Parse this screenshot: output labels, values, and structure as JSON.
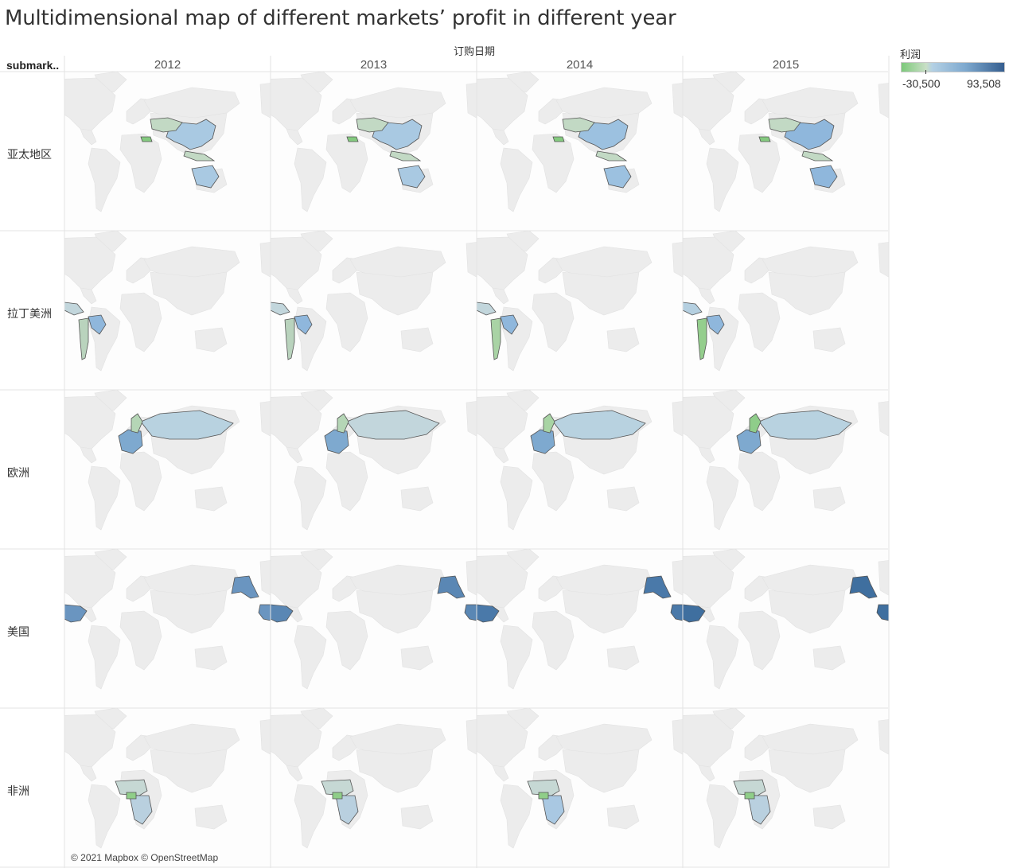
{
  "title": "Multidimensional map of different markets’ profit in different year",
  "column_field": "订购日期",
  "row_field": "submark..",
  "years": [
    "2012",
    "2013",
    "2014",
    "2015"
  ],
  "markets": [
    "亚太地区",
    "拉丁美洲",
    "欧洲",
    "美国",
    "非洲"
  ],
  "legend": {
    "title": "利润",
    "min_label": "-30,500",
    "max_label": "93,508",
    "colors": [
      "#7cc97a",
      "#c9dfc6",
      "#b3d0e4",
      "#7ea9cf",
      "#355e8f"
    ]
  },
  "attribution": "© 2021 Mapbox © OpenStreetMap",
  "map_style": {
    "basemap_land": "#ececec",
    "highlight_border": "#555555"
  },
  "cell_colors": {
    "亚太地区": {
      "2012": [
        "#a9c9e2",
        "#c2d9c4",
        "#84ca7f"
      ],
      "2013": [
        "#a9c9e2",
        "#c2d9c4",
        "#84ca7f"
      ],
      "2014": [
        "#9cc1e0",
        "#c2d9c4",
        "#84ca7f"
      ],
      "2015": [
        "#8fb7dc",
        "#c2d9c4",
        "#84ca7f"
      ]
    },
    "拉丁美洲": {
      "2012": [
        "#c2d6dc",
        "#8fb7dc",
        "#b9d3bd"
      ],
      "2013": [
        "#c2d6dc",
        "#8fb7dc",
        "#b9d3bd"
      ],
      "2014": [
        "#c2d6dc",
        "#8fb7dc",
        "#a9d3a5"
      ],
      "2015": [
        "#b4cfe0",
        "#8fb7dc",
        "#94ce8d"
      ]
    },
    "欧洲": {
      "2012": [
        "#b8d2e0",
        "#7ea9cf",
        "#b5d6b6"
      ],
      "2013": [
        "#c2d6dc",
        "#7ea9cf",
        "#b5d6b6"
      ],
      "2014": [
        "#b8d2e0",
        "#7ea9cf",
        "#a8d4a4"
      ],
      "2015": [
        "#b8d2e0",
        "#7ea9cf",
        "#8fcd8a"
      ]
    },
    "美国": {
      "2012": [
        "#6a95c0",
        "#6a95c0",
        "#6a95c0"
      ],
      "2013": [
        "#5a87b4",
        "#5a87b4",
        "#5a87b4"
      ],
      "2014": [
        "#4a79a9",
        "#4a79a9",
        "#4a79a9"
      ],
      "2015": [
        "#3f6f9f",
        "#3f6f9f",
        "#3f6f9f"
      ]
    },
    "非洲": {
      "2012": [
        "#c6d8d4",
        "#b9d0df",
        "#8fce88"
      ],
      "2013": [
        "#c6d8d4",
        "#b9d0df",
        "#8fce88"
      ],
      "2014": [
        "#c6d8d4",
        "#a9c8e2",
        "#8fce88"
      ],
      "2015": [
        "#c6d8d4",
        "#b9d0df",
        "#8fce88"
      ]
    }
  }
}
